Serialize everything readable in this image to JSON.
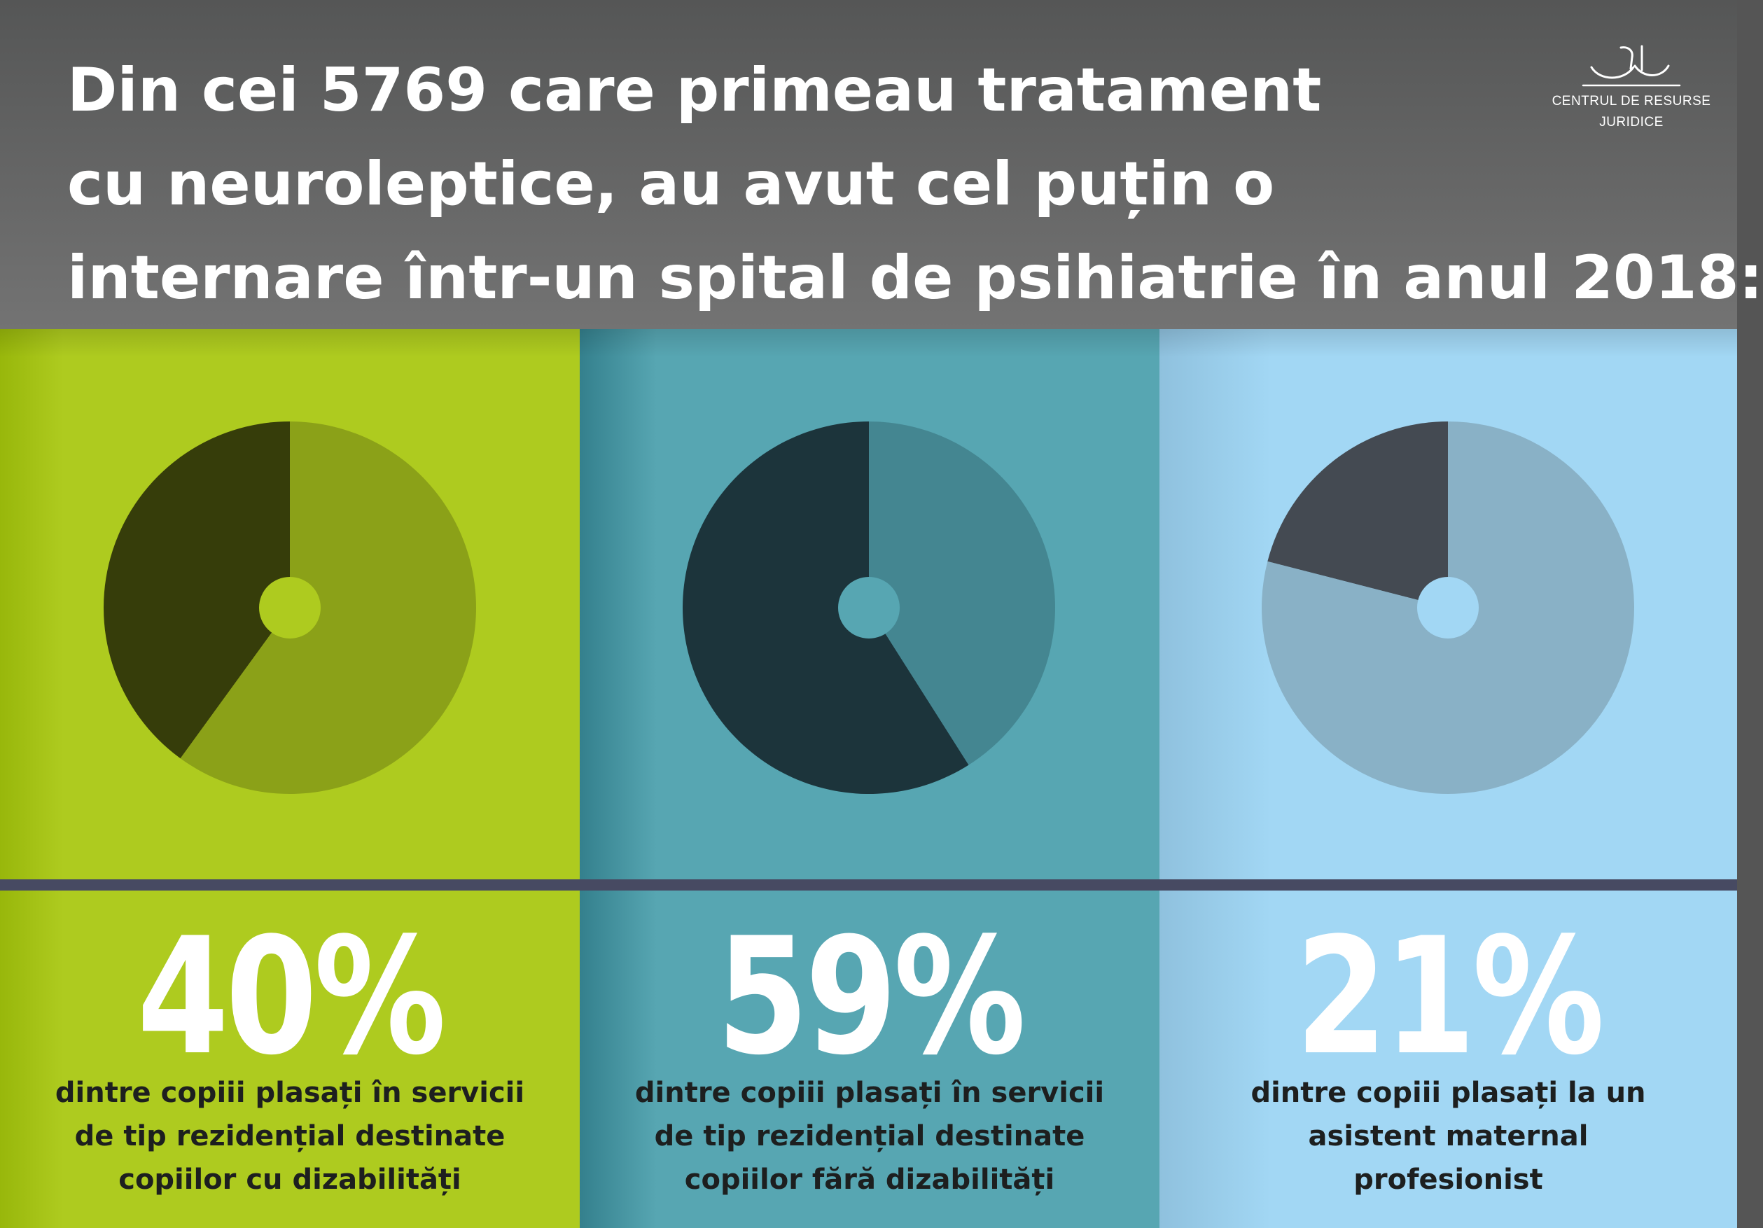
{
  "header": {
    "title_lines": [
      "Din cei 5769 care primeau tratament",
      "cu neuroleptice, au avut cel puțin o",
      "internare într-un spital de psihiatrie în anul 2018:"
    ],
    "logo": {
      "icon": "scales-of-justice-logo-icon",
      "line1": "CENTRUL DE RESURSE",
      "line2": "JURIDICE"
    }
  },
  "chart_data": [
    {
      "type": "pie",
      "slices": [
        {
          "label": "40%",
          "value": 40,
          "color": "#363d0a"
        },
        {
          "value": 60,
          "color": "#8ba118"
        }
      ],
      "label": "40%",
      "description": [
        "dintre copiii plasați în servicii",
        "de tip rezidențial destinate",
        "copiilor cu dizabilități"
      ],
      "background": "#aecb1f",
      "hole_color": "#aecb1f"
    },
    {
      "type": "pie",
      "slices": [
        {
          "label": "59%",
          "value": 59,
          "color": "#1c343b"
        },
        {
          "value": 41,
          "color": "#448691"
        }
      ],
      "label": "59%",
      "description": [
        "dintre copiii plasați în servicii",
        "de tip rezidențial destinate",
        "copiilor fără dizabilități"
      ],
      "background": "#57a6b2",
      "hole_color": "#57a6b2"
    },
    {
      "type": "pie",
      "slices": [
        {
          "label": "21%",
          "value": 21,
          "color": "#444a52"
        },
        {
          "value": 79,
          "color": "#89b1c6"
        }
      ],
      "label": "21%",
      "description": [
        "dintre copiii plasați la un",
        "asistent maternal",
        "profesionist"
      ],
      "background": "#a2d7f4",
      "hole_color": "#a2d7f4"
    }
  ]
}
